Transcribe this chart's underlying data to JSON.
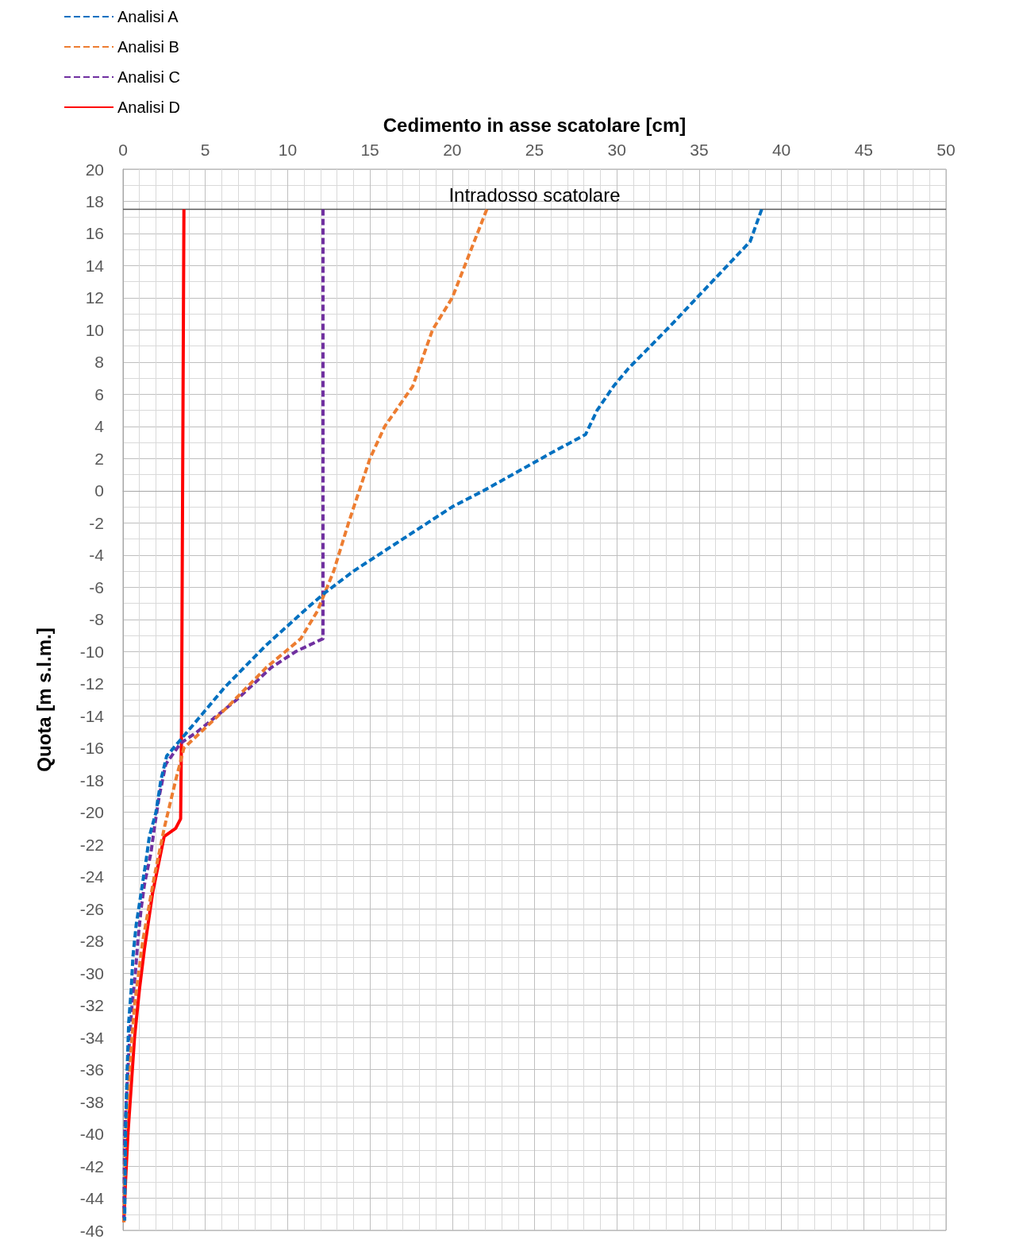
{
  "chart_data": {
    "type": "line",
    "xlabel": "Cedimento in asse scatolare [cm]",
    "ylabel": "Quota [m s.l.m.]",
    "xlim": [
      0,
      50
    ],
    "xticks": [
      0,
      5,
      10,
      15,
      20,
      25,
      30,
      35,
      40,
      45,
      50
    ],
    "ylim": [
      -46,
      20
    ],
    "yticks": [
      -46,
      -44,
      -42,
      -40,
      -38,
      -36,
      -34,
      -32,
      -30,
      -28,
      -26,
      -24,
      -22,
      -20,
      -18,
      -16,
      -14,
      -12,
      -10,
      -8,
      -6,
      -4,
      -2,
      0,
      2,
      4,
      6,
      8,
      10,
      12,
      14,
      16,
      18,
      20
    ],
    "grid": true,
    "legend": "top left",
    "marker": "none",
    "ref_lines": [
      {
        "axis": "y",
        "value": 17.5,
        "label": "Intradosso scatolare",
        "color": "#595959"
      }
    ],
    "series": [
      {
        "name": "Analisi A",
        "color": "#0070c0",
        "line_style": "dashed",
        "x": [
          38.8,
          38.1,
          35.6,
          33.2,
          30.7,
          29.8,
          28.8,
          28.1,
          26.1,
          21.9,
          20.0,
          17.0,
          14.0,
          12.2,
          11.3,
          8.7,
          6.2,
          3.9,
          2.65,
          2.3,
          2.0,
          1.6,
          1.4,
          1.1,
          0.8,
          0.6,
          0.5,
          0.35,
          0.25,
          0.15,
          0.1
        ],
        "values": [
          17.5,
          15.5,
          12.8,
          10.2,
          7.6,
          6.5,
          5,
          3.5,
          2.4,
          0,
          -1,
          -3,
          -5,
          -6.4,
          -7.2,
          -9.6,
          -12.2,
          -15,
          -16.5,
          -18,
          -20,
          -21.5,
          -23,
          -25,
          -27,
          -29,
          -31,
          -33,
          -36,
          -40,
          -45.4
        ]
      },
      {
        "name": "Analisi B",
        "color": "#ed7d31",
        "line_style": "dashed",
        "x": [
          22.1,
          20.0,
          18.8,
          17.6,
          15.9,
          15.0,
          13.7,
          12.8,
          11.8,
          10.8,
          8.7,
          6.3,
          3.7,
          3.2,
          2.5,
          1.9,
          1.2,
          0.7,
          0.4,
          0.15,
          0.05
        ],
        "values": [
          17.5,
          12,
          10,
          6.5,
          4,
          2,
          -2,
          -5,
          -7.5,
          -9.2,
          -11,
          -13.5,
          -16,
          -18,
          -21,
          -24,
          -28,
          -32,
          -36,
          -40,
          -45.5
        ]
      },
      {
        "name": "Analisi C",
        "color": "#7030a0",
        "line_style": "dashed",
        "x": [
          12.15,
          12.15,
          10.5,
          9.0,
          6.9,
          4.5,
          3.5,
          2.6,
          2.2,
          1.9,
          1.7,
          1.3,
          1.1,
          0.9,
          0.75,
          0.55,
          0.4,
          0.25,
          0.1,
          0.05
        ],
        "values": [
          17.5,
          -9.2,
          -10,
          -11,
          -13,
          -15,
          -15.7,
          -17,
          -19,
          -21,
          -22.5,
          -24.5,
          -26,
          -28,
          -30,
          -32,
          -34,
          -37,
          -40,
          -45.5
        ]
      },
      {
        "name": "Analisi D",
        "color": "#ff0000",
        "line_style": "solid",
        "x": [
          3.7,
          3.55,
          3.5,
          3.2,
          2.5,
          2.2,
          1.8,
          1.3,
          1.0,
          0.7,
          0.5,
          0.3,
          0.15,
          0.05
        ],
        "values": [
          17.5,
          -15.5,
          -20.4,
          -21,
          -21.5,
          -23,
          -25,
          -28.5,
          -31,
          -34,
          -37,
          -40,
          -43,
          -45.5
        ]
      }
    ]
  }
}
